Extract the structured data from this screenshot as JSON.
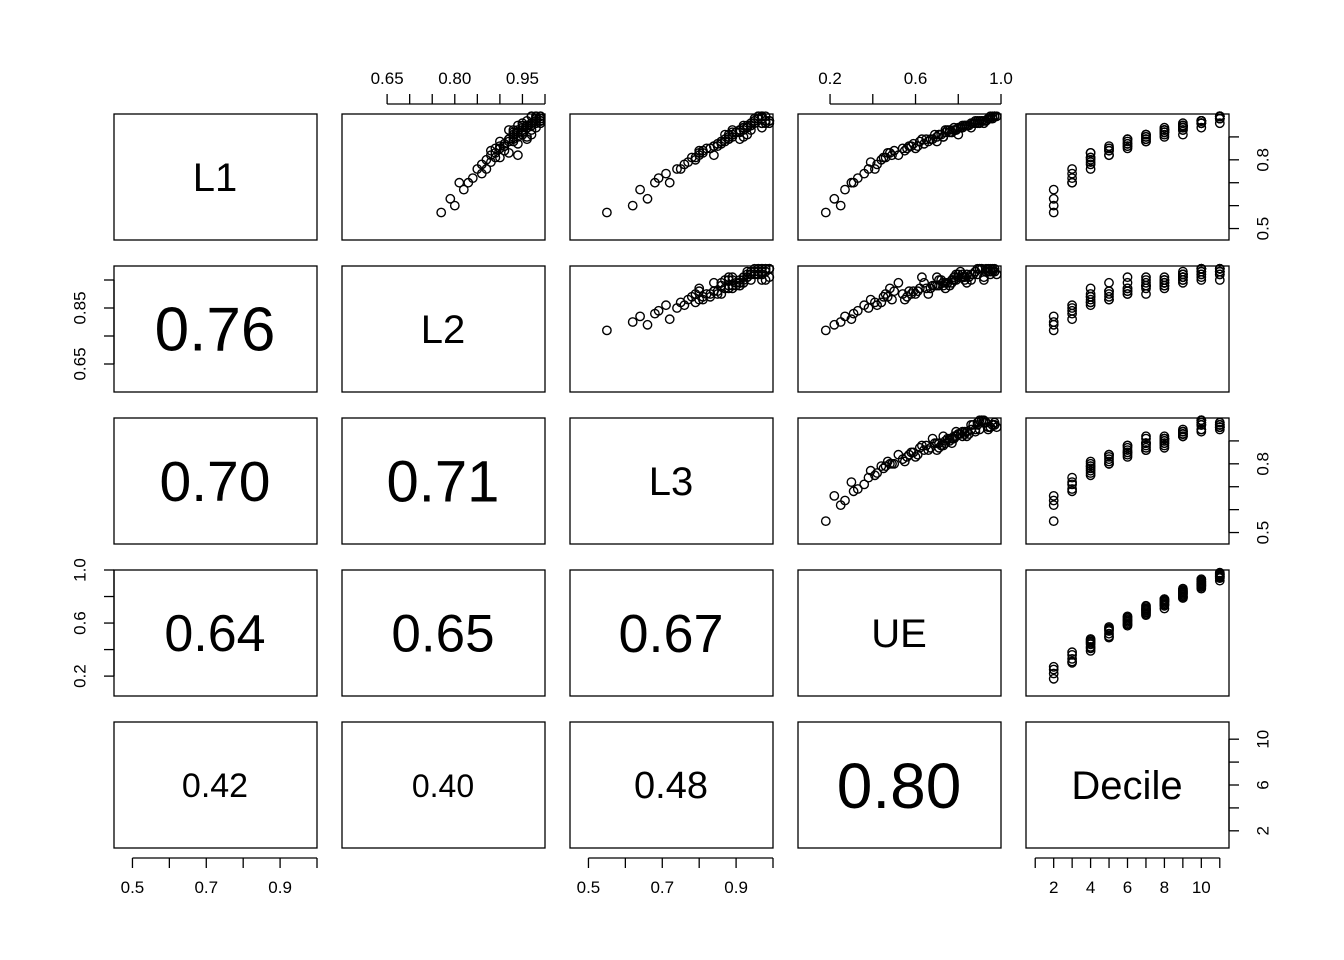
{
  "chart_data": {
    "type": "scatter",
    "title": "",
    "variables": [
      "L1",
      "L2",
      "L3",
      "UE",
      "Decile"
    ],
    "correlations": [
      {
        "row": "L2",
        "col": "L1",
        "value": 0.76
      },
      {
        "row": "L3",
        "col": "L1",
        "value": 0.7
      },
      {
        "row": "L3",
        "col": "L2",
        "value": 0.71
      },
      {
        "row": "UE",
        "col": "L1",
        "value": 0.64
      },
      {
        "row": "UE",
        "col": "L2",
        "value": 0.65
      },
      {
        "row": "UE",
        "col": "L3",
        "value": 0.67
      },
      {
        "row": "Decile",
        "col": "L1",
        "value": 0.42
      },
      {
        "row": "Decile",
        "col": "L2",
        "value": 0.4
      },
      {
        "row": "Decile",
        "col": "L3",
        "value": 0.48
      },
      {
        "row": "Decile",
        "col": "UE",
        "value": 0.8
      }
    ],
    "correlation_labels": {
      "L2_L1": "0.76",
      "L3_L1": "0.70",
      "L3_L2": "0.71",
      "UE_L1": "0.64",
      "UE_L2": "0.65",
      "UE_L3": "0.67",
      "Decile_L1": "0.42",
      "Decile_L2": "0.40",
      "Decile_L3": "0.48",
      "Decile_UE": "0.80"
    },
    "axis_ranges": {
      "L1": [
        0.45,
        1.0
      ],
      "L2": [
        0.55,
        1.0
      ],
      "L3": [
        0.45,
        1.0
      ],
      "UE": [
        0.05,
        1.0
      ],
      "Decile": [
        0.5,
        11.5
      ]
    },
    "axes": {
      "bottom": [
        {
          "variable": "L1",
          "ticks": [
            0.5,
            0.6,
            0.7,
            0.8,
            0.9,
            1.0
          ],
          "labels": [
            "0.5",
            "0.7",
            "0.9"
          ]
        },
        {
          "variable": "L3",
          "ticks": [
            0.5,
            0.6,
            0.7,
            0.8,
            0.9,
            1.0
          ],
          "labels": [
            "0.5",
            "0.7",
            "0.9"
          ]
        },
        {
          "variable": "Decile",
          "ticks": [
            1,
            2,
            3,
            4,
            5,
            6,
            7,
            8,
            9,
            10,
            11
          ],
          "labels": [
            "2",
            "4",
            "6",
            "8",
            "10"
          ]
        }
      ],
      "top": [
        {
          "variable": "L2",
          "ticks": [
            0.65,
            0.7,
            0.75,
            0.8,
            0.85,
            0.9,
            0.95,
            1.0
          ],
          "labels": [
            "0.65",
            "0.80",
            "0.95"
          ]
        },
        {
          "variable": "UE",
          "ticks": [
            0.2,
            0.4,
            0.6,
            0.8,
            1.0
          ],
          "labels": [
            "0.2",
            "0.6",
            "1.0"
          ]
        }
      ],
      "left": [
        {
          "variable": "L2",
          "ticks": [
            0.65,
            0.75,
            0.85,
            0.95
          ],
          "labels": [
            "0.65",
            "0.85"
          ]
        },
        {
          "variable": "UE",
          "ticks": [
            0.2,
            0.4,
            0.6,
            0.8,
            1.0
          ],
          "labels": [
            "0.2",
            "0.6",
            "1.0"
          ]
        }
      ],
      "right": [
        {
          "variable": "L1",
          "ticks": [
            0.5,
            0.6,
            0.7,
            0.8,
            0.9
          ],
          "labels": [
            "0.5",
            "0.8"
          ]
        },
        {
          "variable": "L3",
          "ticks": [
            0.5,
            0.6,
            0.7,
            0.8,
            0.9
          ],
          "labels": [
            "0.5",
            "0.8"
          ]
        },
        {
          "variable": "Decile",
          "ticks": [
            2,
            4,
            6,
            8,
            10
          ],
          "labels": [
            "2",
            "6",
            "10"
          ]
        }
      ]
    },
    "observations": {
      "L1": [
        0.97,
        0.95,
        0.6,
        0.88,
        0.82,
        0.93,
        0.96,
        0.72,
        0.85,
        0.98,
        0.93,
        0.89,
        0.63,
        0.91,
        0.94,
        0.99,
        0.76,
        0.84,
        0.97,
        0.95,
        0.89,
        0.7,
        0.99,
        0.92,
        0.86,
        0.74,
        0.97,
        0.95,
        0.91,
        0.83,
        0.98,
        0.94,
        0.79,
        0.86,
        0.9,
        0.96,
        0.81,
        0.92,
        0.99,
        0.88,
        0.95,
        0.67,
        0.93,
        0.97,
        0.84,
        0.91,
        0.98,
        0.87,
        0.96,
        0.76,
        0.94,
        0.88,
        0.97,
        0.91,
        0.8,
        0.99,
        0.93,
        0.86,
        0.96,
        0.9,
        0.98,
        0.83,
        0.95,
        0.92,
        0.7,
        0.97,
        0.89,
        0.85,
        0.96,
        0.93,
        0.78,
        0.99,
        0.91,
        0.94,
        0.87,
        0.97,
        0.82,
        0.95,
        0.92,
        0.98,
        0.89,
        0.57,
        0.94,
        0.96,
        0.81,
        0.99,
        0.9,
        0.93,
        0.97,
        0.85
      ],
      "L2": [
        0.98,
        0.96,
        0.8,
        0.93,
        0.94,
        0.97,
        0.95,
        0.84,
        0.9,
        0.99,
        0.92,
        0.93,
        0.79,
        0.97,
        0.95,
        0.98,
        0.87,
        0.88,
        0.99,
        0.94,
        0.96,
        0.81,
        0.97,
        0.93,
        0.9,
        0.86,
        0.99,
        0.97,
        0.95,
        0.92,
        0.98,
        0.96,
        0.88,
        0.91,
        0.94,
        0.99,
        0.89,
        0.95,
        0.97,
        0.9,
        0.96,
        0.82,
        0.94,
        0.99,
        0.91,
        0.93,
        0.98,
        0.94,
        0.97,
        0.85,
        0.98,
        0.92,
        0.96,
        0.95,
        0.87,
        0.99,
        0.93,
        0.91,
        0.97,
        0.96,
        0.98,
        0.89,
        0.95,
        0.94,
        0.83,
        0.99,
        0.92,
        0.9,
        0.98,
        0.95,
        0.86,
        0.99,
        0.93,
        0.96,
        0.91,
        0.98,
        0.88,
        0.97,
        0.94,
        0.99,
        0.92,
        0.77,
        0.96,
        0.97,
        0.9,
        0.98,
        0.93,
        0.95,
        0.99,
        0.89
      ],
      "L3": [
        0.95,
        0.93,
        0.62,
        0.86,
        0.84,
        0.94,
        0.98,
        0.69,
        0.83,
        0.96,
        0.89,
        0.91,
        0.66,
        0.93,
        0.97,
        0.97,
        0.75,
        0.81,
        0.99,
        0.92,
        0.88,
        0.72,
        0.96,
        0.9,
        0.85,
        0.71,
        0.98,
        0.94,
        0.87,
        0.8,
        0.97,
        0.92,
        0.77,
        0.84,
        0.92,
        0.99,
        0.78,
        0.89,
        0.96,
        0.86,
        0.93,
        0.64,
        0.91,
        0.98,
        0.8,
        0.89,
        0.95,
        0.86,
        0.97,
        0.74,
        0.93,
        0.87,
        0.99,
        0.88,
        0.79,
        0.97,
        0.91,
        0.84,
        0.95,
        0.89,
        0.96,
        0.81,
        0.94,
        0.9,
        0.68,
        0.99,
        0.88,
        0.82,
        0.94,
        0.92,
        0.76,
        0.97,
        0.89,
        0.93,
        0.85,
        0.98,
        0.8,
        0.94,
        0.91,
        0.96,
        0.87,
        0.55,
        0.92,
        0.97,
        0.79,
        0.98,
        0.88,
        0.91,
        0.95,
        0.83
      ],
      "UE": [
        0.88,
        0.83,
        0.25,
        0.7,
        0.52,
        0.79,
        0.92,
        0.33,
        0.6,
        0.94,
        0.74,
        0.68,
        0.22,
        0.8,
        0.86,
        0.97,
        0.41,
        0.55,
        0.91,
        0.84,
        0.63,
        0.3,
        0.95,
        0.76,
        0.58,
        0.36,
        0.89,
        0.82,
        0.71,
        0.48,
        0.96,
        0.78,
        0.39,
        0.61,
        0.73,
        0.9,
        0.45,
        0.77,
        0.98,
        0.66,
        0.85,
        0.27,
        0.75,
        0.93,
        0.5,
        0.69,
        0.94,
        0.64,
        0.87,
        0.38,
        0.81,
        0.62,
        0.92,
        0.72,
        0.44,
        0.97,
        0.76,
        0.57,
        0.86,
        0.7,
        0.95,
        0.47,
        0.83,
        0.74,
        0.31,
        0.91,
        0.65,
        0.54,
        0.88,
        0.79,
        0.42,
        0.96,
        0.71,
        0.8,
        0.59,
        0.93,
        0.49,
        0.84,
        0.77,
        0.95,
        0.67,
        0.18,
        0.82,
        0.89,
        0.46,
        0.97,
        0.73,
        0.78,
        0.9,
        0.56
      ],
      "Decile": [
        10,
        9,
        2,
        7,
        5,
        9,
        11,
        3,
        6,
        11,
        8,
        7,
        2,
        9,
        10,
        11,
        4,
        5,
        10,
        9,
        6,
        3,
        11,
        8,
        6,
        3,
        10,
        9,
        8,
        4,
        11,
        8,
        4,
        6,
        7,
        10,
        4,
        8,
        11,
        7,
        9,
        2,
        8,
        10,
        5,
        7,
        11,
        6,
        10,
        3,
        9,
        6,
        10,
        7,
        4,
        11,
        8,
        5,
        9,
        7,
        11,
        4,
        9,
        8,
        3,
        10,
        6,
        5,
        10,
        9,
        4,
        11,
        7,
        9,
        6,
        10,
        5,
        9,
        8,
        11,
        7,
        2,
        9,
        10,
        4,
        11,
        8,
        8,
        10,
        5
      ]
    }
  }
}
